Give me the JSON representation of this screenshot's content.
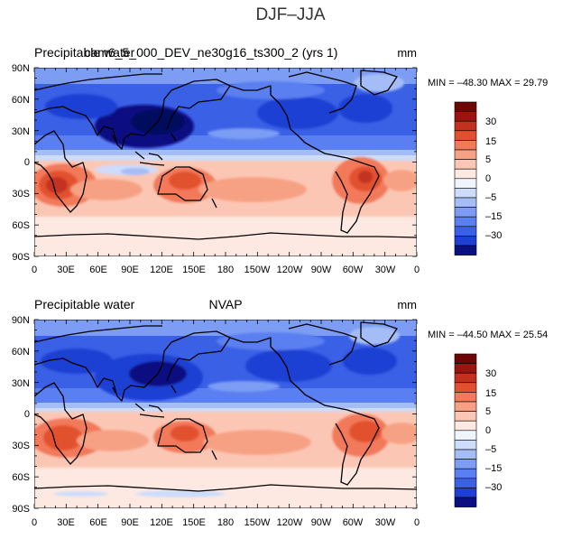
{
  "page_title": "DJF–JJA",
  "palette": [
    "#0a0f82",
    "#1f3fd3",
    "#3a60e6",
    "#5a7ff0",
    "#7d9df4",
    "#a5bdf6",
    "#cddcfa",
    "#f0f5fd",
    "#fde9e1",
    "#fbc7b4",
    "#f7a184",
    "#f2795a",
    "#e2512f",
    "#c43020",
    "#9a1510",
    "#6e0606"
  ],
  "colorbar_labels": [
    "30",
    "15",
    "5",
    "0",
    "–5",
    "–15",
    "–30"
  ],
  "lat_labels": [
    "90N",
    "60N",
    "30N",
    "0",
    "30S",
    "60S",
    "90S"
  ],
  "lon_labels": [
    "0",
    "30E",
    "60E",
    "90E",
    "120E",
    "150E",
    "180",
    "150W",
    "120W",
    "90W",
    "60W",
    "30W",
    "0"
  ],
  "panels": [
    {
      "left_title": "Precipitable water",
      "center_title": "cam6_5_000_DEV_ne30g16_ts300_2 (yrs 1)",
      "units": "mm",
      "min_max": "MIN = –48.30 MAX =  29.79"
    },
    {
      "left_title": "Precipitable water",
      "center_title": "NVAP",
      "units": "mm",
      "min_max": "MIN = –44.50 MAX =  25.54"
    }
  ]
}
